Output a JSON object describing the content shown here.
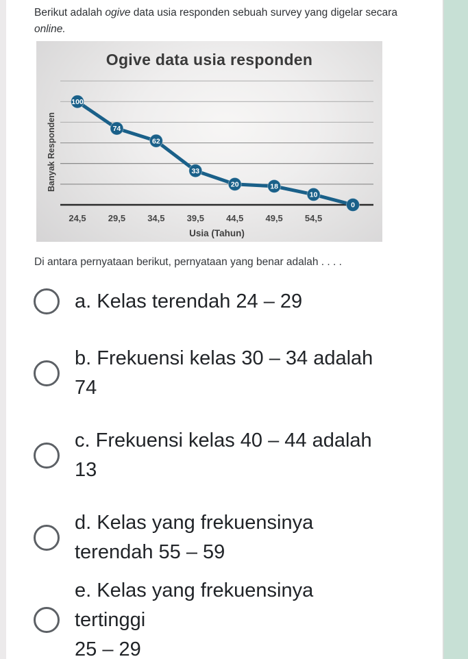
{
  "page": {
    "right_strip_color": "#c7e0d5",
    "left_gutter_color": "#eceaeb"
  },
  "intro": {
    "part1": "Berikut adalah ",
    "part2_italic": "ogive",
    "part3": " data usia responden sebuah survey yang digelar secara ",
    "part4_italic": "online."
  },
  "question_prompt": "Di antara pernyataan berikut, pernyataan yang benar adalah . . . .",
  "options": [
    {
      "line1": "a. Kelas terendah 24 – 29",
      "line2": ""
    },
    {
      "line1": "b. Frekuensi kelas 30 – 34 adalah",
      "line2": "74"
    },
    {
      "line1": "c. Frekuensi kelas 40 – 44 adalah",
      "line2": "13"
    },
    {
      "line1": "d. Kelas yang frekuensinya",
      "line2": "terendah 55 – 59"
    },
    {
      "line1": "e. Kelas yang frekuensinya tertinggi",
      "line2": "25 – 29"
    }
  ],
  "chart_data": {
    "type": "line",
    "title": "Ogive data usia responden",
    "xlabel": "Usia (Tahun)",
    "ylabel": "Banyak Responden",
    "x": [
      24.5,
      29.5,
      34.5,
      39.5,
      44.5,
      49.5,
      54.5,
      59.5
    ],
    "values": [
      100,
      74,
      62,
      33,
      20,
      18,
      10,
      0
    ],
    "point_labels": [
      "100",
      "74",
      "62",
      "33",
      "20",
      "18",
      "10",
      "0"
    ],
    "x_tick_labels": [
      "24,5",
      "29,5",
      "34,5",
      "39,5",
      "44,5",
      "49,5",
      "54,5"
    ],
    "ylim": [
      0,
      120
    ],
    "gridline_step": 20,
    "grid": true,
    "legend": false,
    "line_color": "#1a6089",
    "marker_color": "#1a6089",
    "marker_label_color": "#ffffff"
  }
}
